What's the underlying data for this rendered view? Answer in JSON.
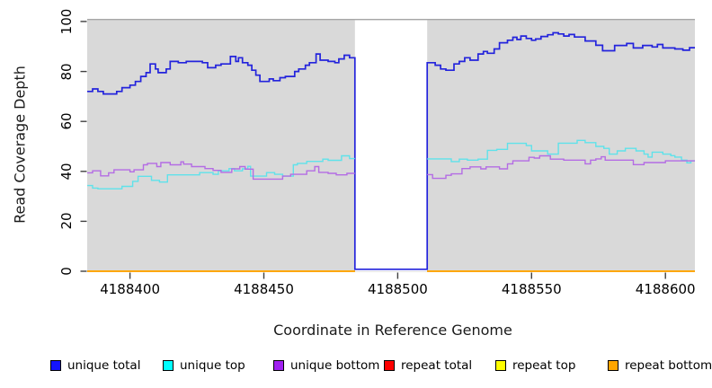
{
  "chart_data": {
    "type": "line",
    "subtype": "step-coverage-plot",
    "title": "",
    "xlabel": "Coordinate in Reference Genome",
    "ylabel": "Read Coverage Depth",
    "xlim": [
      4188384,
      4188611
    ],
    "ylim": [
      0,
      100
    ],
    "x_ticks": [
      {
        "value": 4188400,
        "label": "4188400"
      },
      {
        "value": 4188450,
        "label": "4188450"
      },
      {
        "value": 4188500,
        "label": "4188500"
      },
      {
        "value": 4188550,
        "label": "4188550"
      },
      {
        "value": 4188600,
        "label": "4188600"
      }
    ],
    "y_ticks": [
      {
        "value": 0,
        "label": "0"
      },
      {
        "value": 20,
        "label": "20"
      },
      {
        "value": 40,
        "label": "40"
      },
      {
        "value": 60,
        "label": "60"
      },
      {
        "value": 80,
        "label": "80"
      },
      {
        "value": 100,
        "label": "100"
      }
    ],
    "plot_background_color": "#d9d9d9",
    "gap_region": {
      "start": 4188484,
      "end": 4188511,
      "fill": "#ffffff",
      "top_border_color": "#a6a6a6"
    },
    "grid": false,
    "legend_position": "bottom",
    "series": [
      {
        "name": "unique total",
        "color": "#2323dc",
        "width": 1.7,
        "segments": [
          {
            "end": 4188611,
            "points": [
              [
                4188384,
                72
              ],
              [
                4188386,
                73
              ],
              [
                4188388,
                72
              ],
              [
                4188390,
                71
              ],
              [
                4188395,
                72
              ],
              [
                4188397,
                73.5
              ],
              [
                4188400,
                74.5
              ],
              [
                4188402,
                76
              ],
              [
                4188404,
                78
              ],
              [
                4188406,
                79.5
              ],
              [
                4188407.5,
                83
              ],
              [
                4188409.5,
                81
              ],
              [
                4188410.5,
                79.5
              ],
              [
                4188413.5,
                81
              ],
              [
                4188415,
                84
              ],
              [
                4188418,
                83.5
              ],
              [
                4188421,
                84
              ],
              [
                4188427,
                83.5
              ],
              [
                4188429,
                81.5
              ],
              [
                4188432,
                82.5
              ],
              [
                4188434,
                83
              ],
              [
                4188437.5,
                86
              ],
              [
                4188439.5,
                84
              ],
              [
                4188440.5,
                85.5
              ],
              [
                4188442,
                83.5
              ],
              [
                4188444,
                82.5
              ],
              [
                4188445.5,
                80.5
              ],
              [
                4188447,
                78.5
              ],
              [
                4188448.5,
                76
              ],
              [
                4188452,
                77
              ],
              [
                4188453.5,
                76.3
              ],
              [
                4188456,
                77.5
              ],
              [
                4188458,
                78
              ],
              [
                4188461.5,
                80
              ],
              [
                4188463,
                81
              ],
              [
                4188465.5,
                82.5
              ],
              [
                4188467,
                83.5
              ],
              [
                4188469.5,
                87
              ],
              [
                4188471,
                84.5
              ],
              [
                4188474,
                84
              ],
              [
                4188476.5,
                83.5
              ],
              [
                4188478,
                85
              ],
              [
                4188480,
                86.5
              ],
              [
                4188482,
                85.5
              ],
              [
                4188484,
                0.8
              ],
              [
                4188511,
                83.5
              ],
              [
                4188514,
                82.5
              ],
              [
                4188516,
                81
              ],
              [
                4188518,
                80.5
              ],
              [
                4188521,
                83
              ],
              [
                4188523,
                84
              ],
              [
                4188525,
                85.5
              ],
              [
                4188527,
                84.5
              ],
              [
                4188530,
                87
              ],
              [
                4188532,
                88
              ],
              [
                4188533.5,
                87.3
              ],
              [
                4188536,
                89
              ],
              [
                4188538,
                91.5
              ],
              [
                4188541,
                92.5
              ],
              [
                4188543,
                93.7
              ],
              [
                4188544.5,
                92.8
              ],
              [
                4188546,
                94.2
              ],
              [
                4188548,
                93.2
              ],
              [
                4188550,
                92.5
              ],
              [
                4188551.5,
                93
              ],
              [
                4188553.5,
                94
              ],
              [
                4188556,
                94.7
              ],
              [
                4188558,
                95.5
              ],
              [
                4188560,
                95
              ],
              [
                4188562,
                94.2
              ],
              [
                4188564,
                94.8
              ],
              [
                4188566,
                93.8
              ],
              [
                4188570,
                92.2
              ],
              [
                4188574,
                90.5
              ],
              [
                4188576.5,
                88.3
              ],
              [
                4188581,
                90.4
              ],
              [
                4188585.5,
                91.2
              ],
              [
                4188588,
                89.4
              ],
              [
                4188591.5,
                90.4
              ],
              [
                4188595,
                89.8
              ],
              [
                4188597,
                90.8
              ],
              [
                4188599,
                89.4
              ],
              [
                4188603.5,
                89
              ],
              [
                4188606.5,
                88.5
              ],
              [
                4188609,
                89.5
              ]
            ]
          }
        ]
      },
      {
        "name": "unique top",
        "color": "#5fe2ea",
        "width": 1.4,
        "segments": [
          {
            "end": 4188484,
            "points": [
              [
                4188384,
                34.3
              ],
              [
                4188386,
                33.3
              ],
              [
                4188388,
                33
              ],
              [
                4188397,
                34
              ],
              [
                4188401,
                36
              ],
              [
                4188403,
                38
              ],
              [
                4188408,
                36.4
              ],
              [
                4188411,
                35.7
              ],
              [
                4188414,
                38.6
              ],
              [
                4188426,
                39.5
              ],
              [
                4188431,
                38.8
              ],
              [
                4188433,
                40.2
              ],
              [
                4188437,
                41.1
              ],
              [
                4188439,
                40.2
              ],
              [
                4188442,
                41
              ],
              [
                4188444,
                42
              ],
              [
                4188445,
                38.1
              ],
              [
                4188451,
                39.5
              ],
              [
                4188454,
                38.8
              ],
              [
                4188457,
                38.1
              ],
              [
                4188461,
                42.6
              ],
              [
                4188462.5,
                43.2
              ],
              [
                4188466,
                44
              ],
              [
                4188472,
                44.9
              ],
              [
                4188474,
                44.4
              ],
              [
                4188479,
                46.2
              ],
              [
                4188482,
                45.1
              ]
            ]
          },
          {
            "end": 4188611,
            "points": [
              [
                4188511,
                45
              ],
              [
                4188520,
                43.9
              ],
              [
                4188523,
                44.9
              ],
              [
                4188526,
                44.5
              ],
              [
                4188530,
                44.9
              ],
              [
                4188533.5,
                48.4
              ],
              [
                4188537,
                48.8
              ],
              [
                4188541,
                51.2
              ],
              [
                4188548,
                50.3
              ],
              [
                4188550,
                48.2
              ],
              [
                4188556,
                46.9
              ],
              [
                4188560,
                51.3
              ],
              [
                4188567,
                52.4
              ],
              [
                4188570,
                51.5
              ],
              [
                4188574,
                50
              ],
              [
                4188577,
                49.2
              ],
              [
                4188579,
                46.9
              ],
              [
                4188582,
                48.2
              ],
              [
                4188585,
                49.2
              ],
              [
                4188589,
                48.2
              ],
              [
                4188592,
                46.9
              ],
              [
                4188593.5,
                45.7
              ],
              [
                4188595,
                47.7
              ],
              [
                4188599,
                46.9
              ],
              [
                4188602,
                46.3
              ],
              [
                4188603.5,
                45.7
              ],
              [
                4188606,
                44.5
              ],
              [
                4188608,
                43.4
              ],
              [
                4188609.5,
                44.2
              ]
            ]
          }
        ]
      },
      {
        "name": "unique bottom",
        "color": "#b46ce4",
        "width": 1.4,
        "segments": [
          {
            "end": 4188484,
            "points": [
              [
                4188384,
                39.4
              ],
              [
                4188386,
                40.2
              ],
              [
                4188389,
                38.2
              ],
              [
                4188392,
                39.4
              ],
              [
                4188394,
                40.6
              ],
              [
                4188400,
                39.8
              ],
              [
                4188401.5,
                40.6
              ],
              [
                4188405,
                42.6
              ],
              [
                4188406.5,
                43.2
              ],
              [
                4188410,
                41.9
              ],
              [
                4188411.5,
                43.5
              ],
              [
                4188415,
                42.6
              ],
              [
                4188419,
                43.8
              ],
              [
                4188420,
                42.9
              ],
              [
                4188423,
                41.9
              ],
              [
                4188428,
                41.1
              ],
              [
                4188431,
                40.4
              ],
              [
                4188434,
                39.6
              ],
              [
                4188438,
                41
              ],
              [
                4188441,
                41.9
              ],
              [
                4188443,
                40.9
              ],
              [
                4188446,
                36.9
              ],
              [
                4188457,
                38.1
              ],
              [
                4188460,
                38.8
              ],
              [
                4188466,
                40.2
              ],
              [
                4188469,
                41.9
              ],
              [
                4188470.5,
                39.6
              ],
              [
                4188474,
                39.2
              ],
              [
                4188477,
                38.6
              ],
              [
                4188481,
                39.2
              ]
            ]
          },
          {
            "end": 4188611,
            "points": [
              [
                4188511,
                38.7
              ],
              [
                4188513,
                37.2
              ],
              [
                4188518,
                38.4
              ],
              [
                4188520,
                39
              ],
              [
                4188524,
                41.1
              ],
              [
                4188527,
                41.8
              ],
              [
                4188531,
                41
              ],
              [
                4188533,
                41.8
              ],
              [
                4188538,
                41
              ],
              [
                4188541,
                43
              ],
              [
                4188543,
                44.2
              ],
              [
                4188549,
                45.6
              ],
              [
                4188551,
                45.3
              ],
              [
                4188553,
                46.2
              ],
              [
                4188557,
                44.9
              ],
              [
                4188562,
                44.5
              ],
              [
                4188570,
                43
              ],
              [
                4188572,
                44.5
              ],
              [
                4188574,
                45
              ],
              [
                4188576,
                45.8
              ],
              [
                4188577.5,
                44.5
              ],
              [
                4188588,
                42.7
              ],
              [
                4188592,
                43.5
              ],
              [
                4188600,
                44.2
              ]
            ]
          }
        ]
      },
      {
        "name": "repeat total",
        "color": "#ff0000",
        "width": 1.5,
        "segments": [
          {
            "end": 4188484,
            "points": [
              [
                4188384,
                0
              ]
            ]
          },
          {
            "end": 4188611,
            "points": [
              [
                4188511,
                0
              ]
            ]
          }
        ]
      },
      {
        "name": "repeat top",
        "color": "#ffff00",
        "width": 1.5,
        "segments": [
          {
            "end": 4188484,
            "points": [
              [
                4188384,
                0
              ]
            ]
          },
          {
            "end": 4188611,
            "points": [
              [
                4188511,
                0
              ]
            ]
          }
        ]
      },
      {
        "name": "repeat bottom",
        "color": "#ffa500",
        "width": 1.8,
        "segments": [
          {
            "end": 4188484,
            "points": [
              [
                4188384,
                0
              ]
            ]
          },
          {
            "end": 4188611,
            "points": [
              [
                4188511,
                0
              ]
            ]
          }
        ]
      }
    ]
  },
  "legend": {
    "items": [
      {
        "key": "unique-total",
        "label": "unique total",
        "color": "#1414ff"
      },
      {
        "key": "unique-top",
        "label": "unique top",
        "color": "#00ffff"
      },
      {
        "key": "unique-bottom",
        "label": "unique bottom",
        "color": "#a020f0"
      },
      {
        "key": "repeat-total",
        "label": "repeat total",
        "color": "#ff0000"
      },
      {
        "key": "repeat-top",
        "label": "repeat top",
        "color": "#ffff00"
      },
      {
        "key": "repeat-bottom",
        "label": "repeat bottom",
        "color": "#ffa500"
      }
    ]
  }
}
